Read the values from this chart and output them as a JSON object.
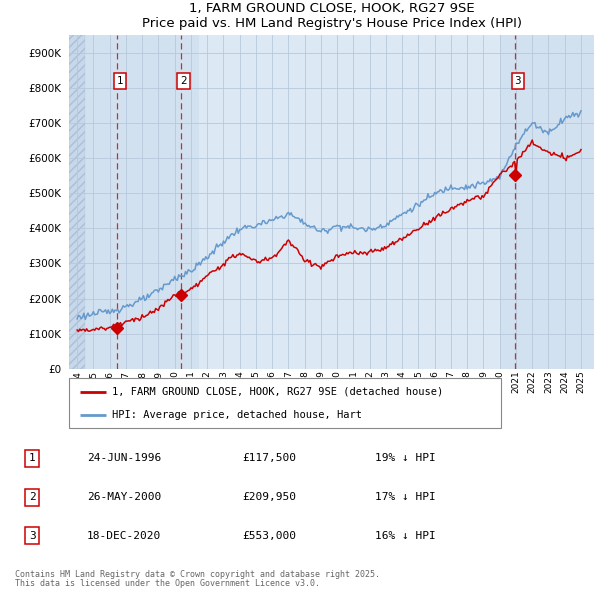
{
  "title": "1, FARM GROUND CLOSE, HOOK, RG27 9SE",
  "subtitle": "Price paid vs. HM Land Registry's House Price Index (HPI)",
  "legend_label_red": "1, FARM GROUND CLOSE, HOOK, RG27 9SE (detached house)",
  "legend_label_blue": "HPI: Average price, detached house, Hart",
  "transactions": [
    {
      "num": 1,
      "date_label": "24-JUN-1996",
      "price": 117500,
      "year": 1996.48,
      "note": "19% ↓ HPI"
    },
    {
      "num": 2,
      "date_label": "26-MAY-2000",
      "price": 209950,
      "year": 2000.4,
      "note": "17% ↓ HPI"
    },
    {
      "num": 3,
      "date_label": "18-DEC-2020",
      "price": 553000,
      "year": 2020.96,
      "note": "16% ↓ HPI"
    }
  ],
  "footnote1": "Contains HM Land Registry data © Crown copyright and database right 2025.",
  "footnote2": "This data is licensed under the Open Government Licence v3.0.",
  "ylim": [
    0,
    950000
  ],
  "yticks": [
    0,
    100000,
    200000,
    300000,
    400000,
    500000,
    600000,
    700000,
    800000,
    900000
  ],
  "xlim_start": 1993.5,
  "xlim_end": 2025.8,
  "background_chart": "#dce9f5",
  "background_hatch": "#c8d8ea",
  "highlight_band": "#ccdcee",
  "red_color": "#cc0000",
  "blue_color": "#6699cc",
  "grid_color": "#b8c8dc",
  "hpi_years": [
    1994,
    1995,
    1996,
    1997,
    1998,
    1999,
    2000,
    2001,
    2002,
    2003,
    2004,
    2005,
    2006,
    2007,
    2008,
    2009,
    2010,
    2011,
    2012,
    2013,
    2014,
    2015,
    2016,
    2017,
    2018,
    2019,
    2020,
    2021,
    2022,
    2023,
    2024,
    2025
  ],
  "hpi_values": [
    147000,
    156000,
    163000,
    178000,
    196000,
    222000,
    258000,
    278000,
    318000,
    362000,
    398000,
    408000,
    422000,
    443000,
    415000,
    390000,
    408000,
    402000,
    396000,
    412000,
    440000,
    468000,
    498000,
    518000,
    518000,
    528000,
    545000,
    640000,
    700000,
    672000,
    715000,
    730000
  ],
  "pp_years": [
    1994,
    1995,
    1996,
    1997,
    1998,
    1999,
    2000,
    2001,
    2002,
    2003,
    2004,
    2005,
    2006,
    2007,
    2008,
    2009,
    2010,
    2011,
    2012,
    2013,
    2014,
    2015,
    2016,
    2017,
    2018,
    2019,
    2020,
    2021,
    2022,
    2023,
    2024,
    2025
  ],
  "pp_values": [
    110000,
    112000,
    117500,
    133000,
    148000,
    170000,
    209950,
    225000,
    263000,
    300000,
    330000,
    305000,
    315000,
    365000,
    310000,
    290000,
    320000,
    330000,
    330000,
    345000,
    370000,
    400000,
    430000,
    455000,
    480000,
    490000,
    553000,
    590000,
    645000,
    615000,
    600000,
    620000
  ]
}
